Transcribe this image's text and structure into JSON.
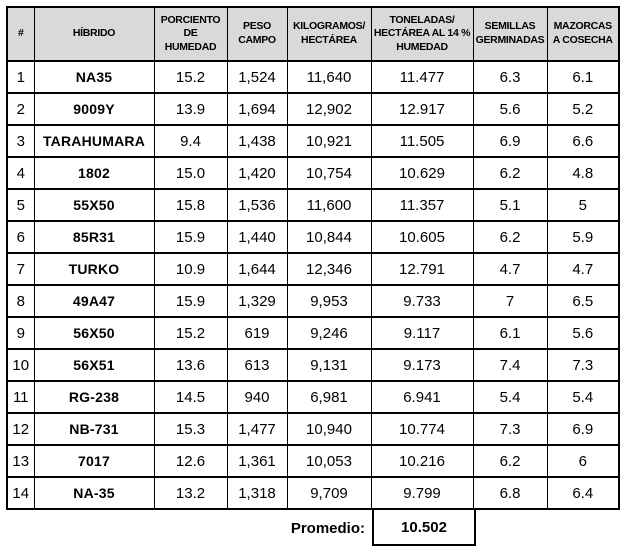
{
  "colors": {
    "header_bg": "#d9d9d9",
    "border": "#000000",
    "text": "#000000",
    "row_bg": "#ffffff"
  },
  "table": {
    "columns": [
      {
        "label": "#"
      },
      {
        "label": "HÍBRIDO"
      },
      {
        "label": "PORCIENTO DE HUMEDAD"
      },
      {
        "label": "PESO CAMPO"
      },
      {
        "label": "KILOGRAMOS/ HECTÁREA"
      },
      {
        "label": "TONELADAS/ HECTÁREA AL 14 % HUMEDAD"
      },
      {
        "label": "SEMILLAS GERMINADAS"
      },
      {
        "label": "MAZORCAS A COSECHA"
      }
    ],
    "rows": [
      [
        "1",
        "NA35",
        "15.2",
        "1,524",
        "11,640",
        "11.477",
        "6.3",
        "6.1"
      ],
      [
        "2",
        "9009Y",
        "13.9",
        "1,694",
        "12,902",
        "12.917",
        "5.6",
        "5.2"
      ],
      [
        "3",
        "TARAHUMARA",
        "9.4",
        "1,438",
        "10,921",
        "11.505",
        "6.9",
        "6.6"
      ],
      [
        "4",
        "1802",
        "15.0",
        "1,420",
        "10,754",
        "10.629",
        "6.2",
        "4.8"
      ],
      [
        "5",
        "55X50",
        "15.8",
        "1,536",
        "11,600",
        "11.357",
        "5.1",
        "5"
      ],
      [
        "6",
        "85R31",
        "15.9",
        "1,440",
        "10,844",
        "10.605",
        "6.2",
        "5.9"
      ],
      [
        "7",
        "TURKO",
        "10.9",
        "1,644",
        "12,346",
        "12.791",
        "4.7",
        "4.7"
      ],
      [
        "8",
        "49A47",
        "15.9",
        "1,329",
        "9,953",
        "9.733",
        "7",
        "6.5"
      ],
      [
        "9",
        "56X50",
        "15.2",
        "619",
        "9,246",
        "9.117",
        "6.1",
        "5.6"
      ],
      [
        "10",
        "56X51",
        "13.6",
        "613",
        "9,131",
        "9.173",
        "7.4",
        "7.3"
      ],
      [
        "11",
        "RG-238",
        "14.5",
        "940",
        "6,981",
        "6.941",
        "5.4",
        "5.4"
      ],
      [
        "12",
        "NB-731",
        "15.3",
        "1,477",
        "10,940",
        "10.774",
        "7.3",
        "6.9"
      ],
      [
        "13",
        "7017",
        "12.6",
        "1,361",
        "10,053",
        "10.216",
        "6.2",
        "6"
      ],
      [
        "14",
        "NA-35",
        "13.2",
        "1,318",
        "9,709",
        "9.799",
        "6.8",
        "6.4"
      ]
    ],
    "footer": {
      "label": "Promedio:",
      "value": "10.502"
    }
  }
}
